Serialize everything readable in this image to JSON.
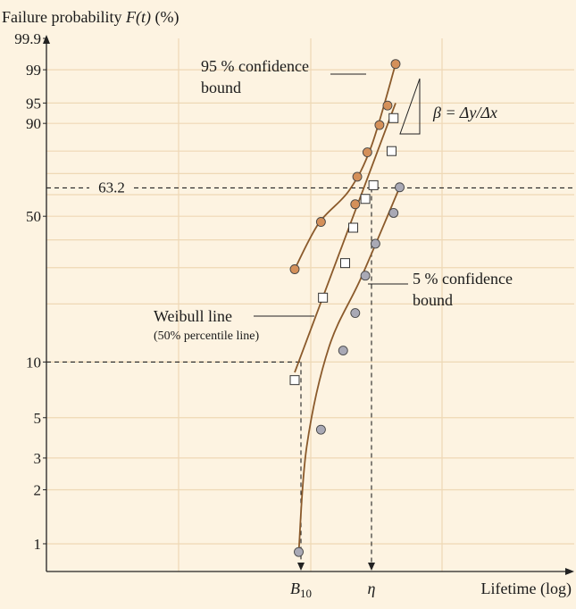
{
  "chart_data": {
    "type": "scatter",
    "title": "",
    "ylabel_parts": {
      "pre": "Failure probability ",
      "var": "F(t)",
      "post": " (%)"
    },
    "xlabel": "Lifetime (log)",
    "y_scale": "weibull",
    "ylim": [
      0.7,
      99.9
    ],
    "y_ticks": [
      "1",
      "2",
      "3",
      "5",
      "10",
      "50",
      "90",
      "95",
      "99",
      "99.9"
    ],
    "x_scale": "log",
    "x_tick_labels": {
      "b10": "B",
      "b10_sub": "10",
      "eta": "η"
    },
    "grid": true,
    "reference_line_label": "63.2",
    "series": [
      {
        "name": "95% confidence bound",
        "marker": "circle",
        "color": "#D4905A",
        "points": [
          [
            0.0,
            29.5
          ],
          [
            0.13,
            47.5
          ],
          [
            0.3,
            55.5
          ],
          [
            0.31,
            68.5
          ],
          [
            0.36,
            79.5
          ],
          [
            0.42,
            89.5
          ],
          [
            0.46,
            94.5
          ],
          [
            0.5,
            99.3
          ]
        ]
      },
      {
        "name": "Weibull line (50% percentile line)",
        "marker": "square",
        "color": "#FFFFFF",
        "points": [
          [
            0.0,
            8.0
          ],
          [
            0.14,
            21.5
          ],
          [
            0.25,
            31.5
          ],
          [
            0.29,
            45.0
          ],
          [
            0.35,
            58.0
          ],
          [
            0.39,
            64.5
          ],
          [
            0.48,
            80.0
          ],
          [
            0.49,
            91.5
          ]
        ]
      },
      {
        "name": "5% confidence bound",
        "marker": "circle",
        "color": "#A9A9B5",
        "points": [
          [
            0.02,
            0.9
          ],
          [
            0.13,
            4.3
          ],
          [
            0.24,
            11.5
          ],
          [
            0.3,
            18.0
          ],
          [
            0.35,
            27.5
          ],
          [
            0.4,
            38.5
          ],
          [
            0.49,
            51.5
          ],
          [
            0.52,
            63.5
          ]
        ]
      }
    ]
  },
  "annotations": {
    "upper_bound": [
      "95 % confidence",
      "bound"
    ],
    "lower_bound": [
      "5 % confidence",
      "bound"
    ],
    "weibull": "Weibull line",
    "weibull_sub": "(50% percentile line)",
    "slope": "β = Δy/Δx"
  }
}
